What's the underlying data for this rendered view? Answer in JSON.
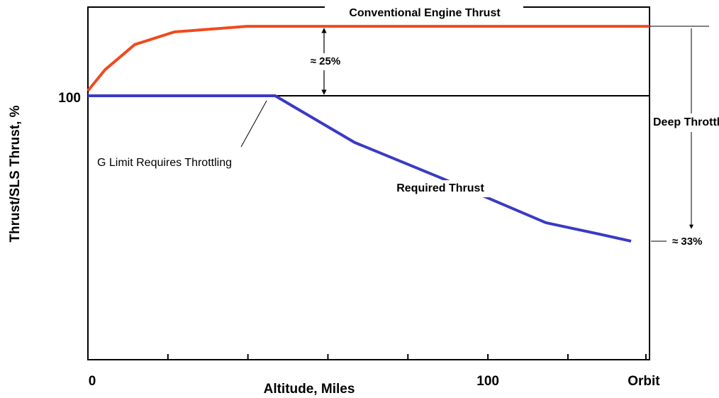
{
  "chart_data": {
    "type": "line",
    "x_label": "Altitude, Miles",
    "y_label": "Thrust/SLS Thrust, %",
    "xlim": [
      0,
      140.4
    ],
    "ylim": [
      0,
      133.6
    ],
    "xticks": [
      0,
      100,
      {
        "value": 139.5,
        "label": "Orbit"
      }
    ],
    "xminorticks": [
      20,
      40,
      60,
      80,
      120
    ],
    "yticks": [
      100
    ],
    "series": [
      {
        "name": "Conventional Engine Thrust",
        "color": "#f04a1f",
        "x": [
          0,
          4.3,
          11.7,
          21.6,
          39.7,
          140.4
        ],
        "values": [
          101.9,
          109.9,
          119.4,
          124.2,
          126.3,
          126.3
        ]
      },
      {
        "name": "Required Thrust",
        "color": "#3a3ac6",
        "x": [
          0,
          46.8,
          66.7,
          87.9,
          114.5,
          127.8,
          135.8
        ],
        "values": [
          100,
          100,
          82.3,
          69.1,
          51.9,
          47.6,
          44.9
        ]
      }
    ],
    "annotations": [
      "≈ 25%",
      "G Limit Requires Throttling",
      "Deep Throttling",
      "≈ 33%"
    ]
  }
}
